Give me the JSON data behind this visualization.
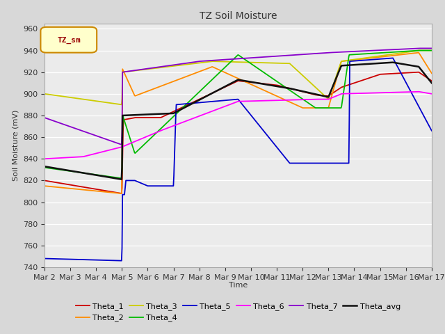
{
  "title": "TZ Soil Moisture",
  "ylabel": "Soil Moisture (mV)",
  "xlabel": "Time",
  "ylim": [
    740,
    965
  ],
  "yticks": [
    740,
    760,
    780,
    800,
    820,
    840,
    860,
    880,
    900,
    920,
    940,
    960
  ],
  "fig_bg": "#d8d8d8",
  "plot_bg": "#ebebeb",
  "series_colors": {
    "Theta_1": "#cc0000",
    "Theta_2": "#ff8c00",
    "Theta_3": "#cccc00",
    "Theta_4": "#00bb00",
    "Theta_5": "#0000cc",
    "Theta_6": "#ff00ff",
    "Theta_7": "#8800cc",
    "Theta_avg": "#111111"
  },
  "x_labels": [
    "Mar 2",
    "Mar 3",
    "Mar 4",
    "Mar 5",
    "Mar 6",
    "Mar 7",
    "Mar 8",
    "Mar 9",
    "Mar 10",
    "Mar 11",
    "Mar 12",
    "Mar 13",
    "Mar 14",
    "Mar 15",
    "Mar 16",
    "Mar 17"
  ],
  "legend_box": {
    "label": "TZ_sm",
    "facecolor": "#ffffcc",
    "edgecolor": "#cc8800",
    "textcolor": "#990000"
  }
}
